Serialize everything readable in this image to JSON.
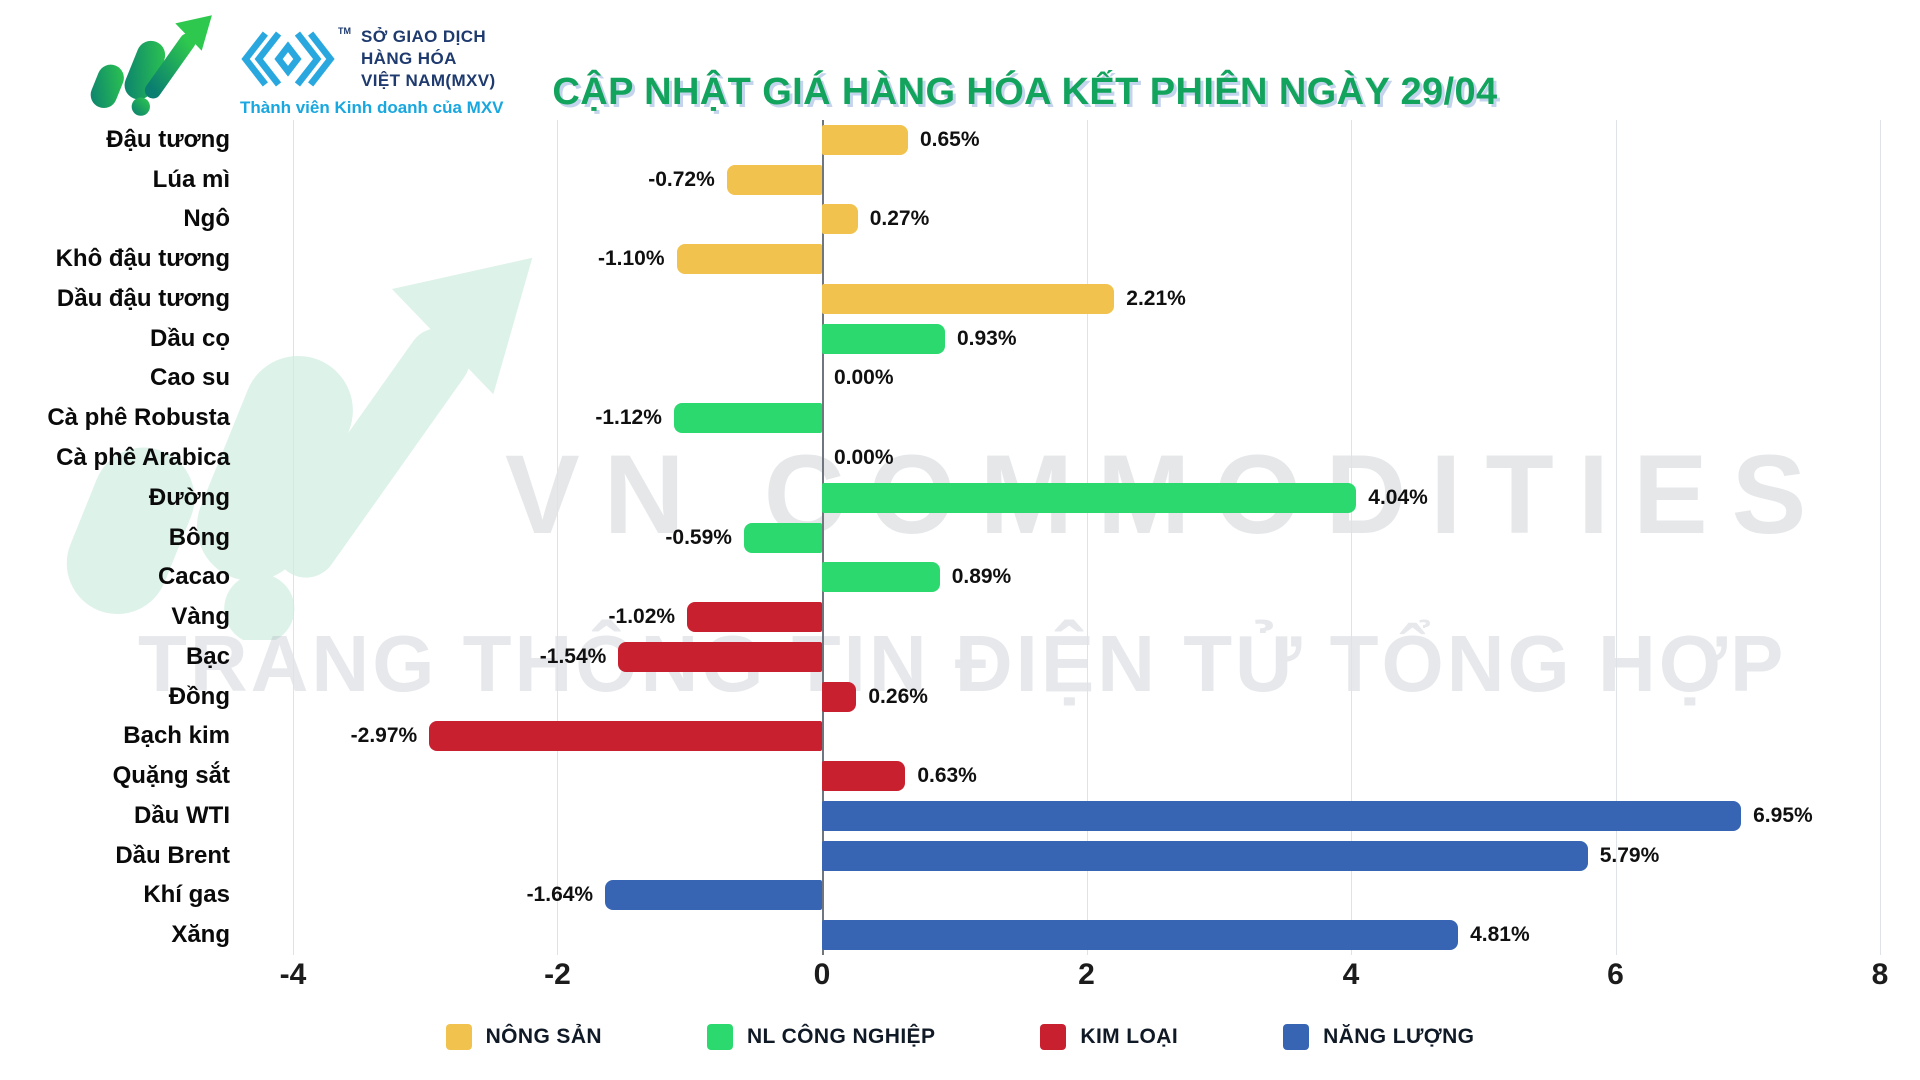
{
  "header": {
    "title": "CẬP NHẬT GIÁ HÀNG HÓA KẾT PHIÊN NGÀY 29/04",
    "mxv": {
      "line1": "SỞ GIAO DỊCH",
      "line2": "HÀNG HÓA",
      "line3": "VIỆT NAM(MXV)",
      "tm": "TM",
      "tagline": "Thành viên Kinh doanh của MXV"
    }
  },
  "watermark": {
    "line1": "VN COMMODITIES",
    "line2": "TRANG THÔNG TIN ĐIỆN TỬ TỔNG HỢP"
  },
  "chart_data": {
    "type": "bar",
    "orientation": "horizontal",
    "title": "CẬP NHẬT GIÁ HÀNG HÓA KẾT PHIÊN NGÀY 29/04",
    "xlim": [
      -4,
      8
    ],
    "xticks": [
      -4,
      -2,
      0,
      2,
      4,
      6,
      8
    ],
    "grid": true,
    "categories": [
      "Đậu tương",
      "Lúa mì",
      "Ngô",
      "Khô đậu tương",
      "Dầu đậu tương",
      "Dầu cọ",
      "Cao su",
      "Cà phê Robusta",
      "Cà phê Arabica",
      "Đường",
      "Bông",
      "Cacao",
      "Vàng",
      "Bạc",
      "Đồng",
      "Bạch kim",
      "Quặng sắt",
      "Dầu WTI",
      "Dầu Brent",
      "Khí gas",
      "Xăng"
    ],
    "values": [
      0.65,
      -0.72,
      0.27,
      -1.1,
      2.21,
      0.93,
      0.0,
      -1.12,
      0.0,
      4.04,
      -0.59,
      0.89,
      -1.02,
      -1.54,
      0.26,
      -2.97,
      0.63,
      6.95,
      5.79,
      -1.64,
      4.81
    ],
    "value_labels": [
      "0.65%",
      "-0.72%",
      "0.27%",
      "-1.10%",
      "2.21%",
      "0.93%",
      "0.00%",
      "-1.12%",
      "0.00%",
      "4.04%",
      "-0.59%",
      "0.89%",
      "-1.02%",
      "-1.54%",
      "0.26%",
      "-2.97%",
      "0.63%",
      "6.95%",
      "5.79%",
      "-1.64%",
      "4.81%"
    ],
    "groups": [
      "nong_san",
      "nong_san",
      "nong_san",
      "nong_san",
      "nong_san",
      "nl_cong_nghiep",
      "nl_cong_nghiep",
      "nl_cong_nghiep",
      "nl_cong_nghiep",
      "nl_cong_nghiep",
      "nl_cong_nghiep",
      "nl_cong_nghiep",
      "kim_loai",
      "kim_loai",
      "kim_loai",
      "kim_loai",
      "kim_loai",
      "nang_luong",
      "nang_luong",
      "nang_luong",
      "nang_luong"
    ],
    "group_colors": {
      "nong_san": "#F1C24D",
      "nl_cong_nghiep": "#2BD96E",
      "kim_loai": "#C92030",
      "nang_luong": "#3765B3"
    }
  },
  "legend": {
    "items": [
      {
        "label": "NÔNG SẢN",
        "color": "#F1C24D"
      },
      {
        "label": "NL CÔNG NGHIỆP",
        "color": "#2BD96E"
      },
      {
        "label": "KIM LOẠI",
        "color": "#C92030"
      },
      {
        "label": "NĂNG LƯỢNG",
        "color": "#3765B3"
      }
    ]
  }
}
